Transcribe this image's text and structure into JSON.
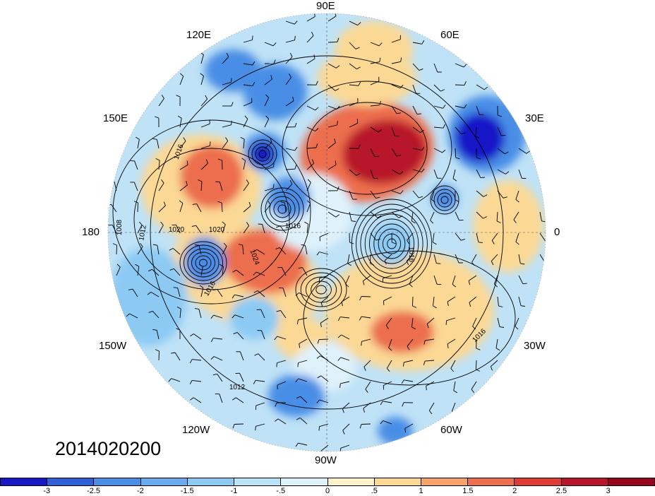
{
  "title": "",
  "date_label": "2014020200",
  "longitude_labels": {
    "lon_90e": "90E",
    "lon_120e": "120E",
    "lon_60e": "60E",
    "lon_150e": "150E",
    "lon_30e": "30E",
    "lon_180": "180",
    "lon_0": "0",
    "lon_150w": "150W",
    "lon_30w": "30W",
    "lon_120w": "120W",
    "lon_60w": "60W",
    "lon_90w": "90W"
  },
  "contour_labels": [
    "1016",
    "1008",
    "1012",
    "1020",
    "1020",
    "1024",
    "1016",
    "1016",
    "1016",
    "1016",
    "1012"
  ],
  "colorbar": {
    "tick_labels": [
      "-3",
      "-2.5",
      "-2",
      "-1.5",
      "-1",
      "-.5",
      "0",
      ".5",
      "1",
      "1.5",
      "2",
      "2.5",
      "3"
    ],
    "colors": [
      "#1818c8",
      "#3060d8",
      "#4a8ee6",
      "#6aaaee",
      "#8ccaf4",
      "#b8e4f8",
      "#dff2fb",
      "#fdf1c8",
      "#fbd894",
      "#f6a46c",
      "#ec6e4e",
      "#de3a36",
      "#b8142a",
      "#98061c"
    ]
  },
  "field_colors": {
    "strong_negative": "#1818c8",
    "negative": "#4a8ee6",
    "weak_negative": "#8ccaf4",
    "near_zero": "#dff2fb",
    "weak_positive": "#fbd894",
    "positive": "#ec6e4e",
    "strong_positive": "#b8142a"
  }
}
